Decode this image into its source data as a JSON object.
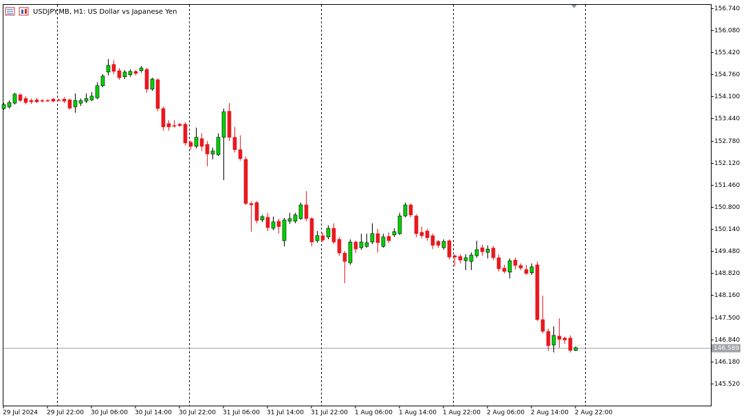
{
  "chart_data": {
    "type": "candlestick",
    "title": "USDJPY.MB, H1:  US Dollar vs Japanese Yen",
    "categories": [
      "29 Jul 2024",
      null,
      null,
      null,
      null,
      null,
      null,
      null,
      "29 Jul 22:00",
      null,
      null,
      null,
      null,
      null,
      null,
      null,
      "30 Jul 06:00",
      null,
      null,
      null,
      null,
      null,
      null,
      null,
      "30 Jul 14:00",
      null,
      null,
      null,
      null,
      null,
      null,
      null,
      "30 Jul 22:00",
      null,
      null,
      null,
      null,
      null,
      null,
      null,
      "31 Jul 06:00",
      null,
      null,
      null,
      null,
      null,
      null,
      null,
      "31 Jul 14:00",
      null,
      null,
      null,
      null,
      null,
      null,
      null,
      "31 Jul 22:00",
      null,
      null,
      null,
      null,
      null,
      null,
      null,
      "1 Aug 06:00",
      null,
      null,
      null,
      null,
      null,
      null,
      null,
      "1 Aug 14:00",
      null,
      null,
      null,
      null,
      null,
      null,
      null,
      "1 Aug 22:00",
      null,
      null,
      null,
      null,
      null,
      null,
      null,
      "2 Aug 06:00",
      null,
      null,
      null,
      null,
      null,
      null,
      null,
      "2 Aug 14:00",
      null,
      null,
      null,
      null,
      null,
      null,
      null,
      "2 Aug 22:00"
    ],
    "open": [
      153.74,
      153.79,
      153.9,
      154.15,
      154.04,
      153.98,
      154.0,
      153.98,
      153.98,
      154.02,
      154.0,
      154.02,
      154.0,
      153.79,
      153.9,
      153.96,
      154.0,
      154.06,
      154.42,
      154.83,
      155.06,
      154.87,
      154.69,
      154.75,
      154.85,
      154.87,
      154.91,
      154.32,
      154.6,
      153.74,
      153.29,
      153.23,
      153.27,
      153.27,
      152.73,
      152.61,
      152.84,
      152.67,
      152.38,
      152.36,
      152.88,
      153.66,
      152.88,
      152.51,
      152.22,
      150.9,
      150.93,
      150.41,
      150.49,
      150.16,
      150.37,
      149.79,
      150.37,
      150.37,
      150.45,
      150.86,
      150.45,
      149.79,
      149.94,
      149.9,
      150.16,
      149.83,
      149.42,
      149.13,
      149.75,
      149.58,
      149.62,
      149.75,
      150.0,
      149.62,
      149.92,
      149.96,
      150.0,
      150.53,
      150.86,
      150.53,
      150.04,
      150.08,
      149.94,
      149.77,
      149.58,
      149.79,
      149.34,
      149.32,
      149.19,
      149.17,
      149.34,
      149.58,
      149.44,
      149.57,
      149.28,
      148.97,
      148.85,
      149.21,
      149.05,
      148.93,
      148.83,
      149.07,
      147.43,
      147.08,
      146.67,
      146.94,
      146.88,
      146.88,
      146.51
    ],
    "high": [
      153.9,
      153.98,
      154.21,
      154.19,
      154.11,
      154.04,
      154.06,
      154.02,
      154.02,
      154.06,
      154.04,
      154.08,
      154.04,
      154.19,
      154.04,
      154.19,
      154.23,
      154.52,
      154.77,
      155.22,
      155.18,
      154.95,
      154.89,
      154.91,
      154.89,
      155.01,
      154.95,
      154.66,
      154.64,
      153.8,
      153.39,
      153.39,
      153.31,
      153.33,
      152.79,
      153.17,
      153.0,
      152.77,
      152.57,
      153.0,
      153.74,
      153.9,
      153.19,
      152.94,
      152.3,
      150.97,
      150.97,
      150.56,
      150.62,
      150.51,
      150.45,
      150.47,
      150.62,
      150.62,
      150.93,
      151.27,
      150.49,
      150.08,
      150.04,
      150.25,
      150.31,
      149.9,
      149.48,
      149.83,
      149.79,
      150.0,
      150.0,
      150.31,
      150.14,
      150.0,
      150.04,
      150.16,
      150.62,
      150.93,
      150.9,
      150.58,
      150.21,
      150.14,
      150.0,
      149.81,
      149.83,
      149.83,
      149.38,
      149.38,
      149.38,
      149.44,
      149.79,
      149.67,
      149.65,
      149.63,
      149.38,
      149.07,
      149.26,
      149.28,
      149.11,
      149.07,
      149.11,
      149.17,
      148.15,
      147.16,
      147.23,
      147.47,
      146.92,
      146.96,
      146.63
    ],
    "low": [
      153.7,
      153.74,
      153.86,
      153.94,
      153.86,
      153.88,
      153.9,
      153.92,
      153.94,
      153.92,
      153.96,
      153.9,
      153.71,
      153.61,
      153.82,
      153.9,
      153.96,
      154.02,
      154.38,
      154.73,
      154.77,
      154.6,
      154.62,
      154.69,
      154.73,
      154.81,
      154.21,
      154.27,
      153.66,
      153.08,
      153.08,
      153.17,
      153.19,
      152.63,
      152.51,
      152.55,
      152.47,
      152.01,
      152.22,
      152.32,
      151.6,
      152.77,
      152.43,
      152.18,
      150.86,
      150.06,
      150.31,
      150.35,
      150.08,
      150.1,
      150.0,
      149.62,
      150.29,
      150.31,
      150.41,
      150.37,
      149.62,
      149.73,
      149.75,
      149.83,
      149.69,
      149.34,
      148.52,
      149.07,
      149.42,
      149.52,
      149.58,
      149.69,
      149.44,
      149.58,
      149.73,
      149.9,
      149.96,
      150.49,
      150.49,
      149.9,
      149.86,
      149.79,
      149.54,
      149.57,
      149.52,
      149.23,
      149.03,
      149.11,
      148.91,
      148.91,
      149.28,
      149.34,
      149.26,
      149.21,
      148.87,
      148.81,
      148.66,
      148.93,
      148.91,
      148.77,
      148.77,
      147.39,
      147.02,
      146.49,
      146.45,
      146.59,
      146.71,
      146.45,
      146.49
    ],
    "close": [
      153.86,
      153.92,
      154.17,
      153.98,
      153.92,
      153.94,
      153.94,
      153.96,
      153.97,
      153.96,
      153.99,
      153.96,
      153.75,
      153.98,
      153.98,
      154.04,
      154.11,
      154.42,
      154.71,
      155.03,
      154.85,
      154.66,
      154.83,
      154.85,
      154.79,
      154.95,
      154.32,
      154.62,
      153.74,
      153.19,
      153.19,
      153.21,
      153.23,
      152.71,
      152.61,
      152.88,
      152.61,
      152.38,
      152.47,
      152.88,
      153.64,
      152.88,
      152.51,
      152.24,
      150.9,
      150.86,
      150.39,
      150.51,
      150.18,
      150.35,
      150.21,
      150.41,
      150.45,
      150.56,
      150.86,
      150.45,
      149.75,
      149.94,
      149.81,
      150.16,
      149.75,
      149.42,
      149.17,
      149.75,
      149.54,
      149.75,
      149.73,
      150.0,
      149.73,
      149.9,
      149.79,
      150.06,
      150.53,
      150.86,
      150.56,
      150.0,
      149.94,
      149.88,
      149.65,
      149.65,
      149.77,
      149.3,
      149.3,
      149.21,
      149.28,
      149.36,
      149.52,
      149.46,
      149.54,
      149.28,
      148.95,
      148.87,
      149.19,
      149.05,
      148.97,
      148.81,
      149.01,
      147.43,
      147.08,
      146.65,
      146.96,
      146.84,
      146.82,
      146.51,
      146.59
    ],
    "up_color": "#00d400",
    "down_color": "#e8191f",
    "ylim": [
      144.86,
      156.86
    ],
    "yticks": [
      {
        "value": 156.74,
        "label": "156.740"
      },
      {
        "value": 156.08,
        "label": "156.080"
      },
      {
        "value": 155.42,
        "label": "155.420"
      },
      {
        "value": 154.76,
        "label": "154.760"
      },
      {
        "value": 154.1,
        "label": "154.100"
      },
      {
        "value": 153.44,
        "label": "153.440"
      },
      {
        "value": 152.78,
        "label": "152.780"
      },
      {
        "value": 152.12,
        "label": "152.120"
      },
      {
        "value": 151.46,
        "label": "151.460"
      },
      {
        "value": 150.8,
        "label": "150.800"
      },
      {
        "value": 150.14,
        "label": "150.140"
      },
      {
        "value": 149.48,
        "label": "149.480"
      },
      {
        "value": 148.82,
        "label": "148.820"
      },
      {
        "value": 148.16,
        "label": "148.160"
      },
      {
        "value": 147.5,
        "label": "147.500"
      },
      {
        "value": 146.84,
        "label": "146.840"
      },
      {
        "value": 146.18,
        "label": "146.180"
      },
      {
        "value": 145.52,
        "label": "145.520"
      }
    ],
    "price_line": 146.589,
    "grid": false
  }
}
